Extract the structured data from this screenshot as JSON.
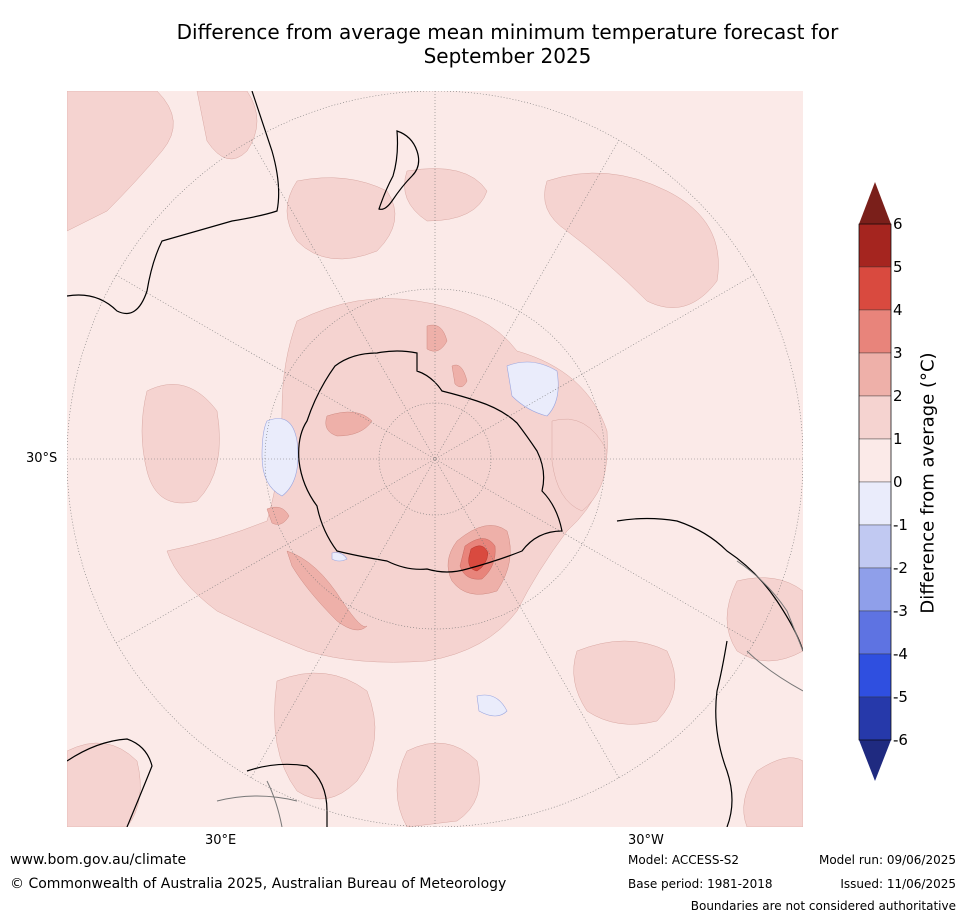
{
  "title": {
    "line1": "Difference from average mean minimum temperature forecast for",
    "line2": "September 2025"
  },
  "map": {
    "lat_label": "30°S",
    "lon_labels": {
      "east": "30°E",
      "west": "30°W"
    }
  },
  "legend": {
    "title": "Difference from average (°C)",
    "ticks": [
      "6",
      "5",
      "4",
      "3",
      "2",
      "1",
      "0",
      "-1",
      "-2",
      "-3",
      "-4",
      "-5",
      "-6"
    ],
    "colors": {
      "over": "#7a1f1a",
      "under": "#1f2a80",
      "bands": [
        "#a5251f",
        "#d94a3f",
        "#e8847b",
        "#eeb0a9",
        "#f5d3d0",
        "#fbeae8",
        "#eaecfb",
        "#c1c9f2",
        "#8f9fea",
        "#5e73e2",
        "#2f4fe0",
        "#2639aa"
      ]
    }
  },
  "footer": {
    "website": "www.bom.gov.au/climate",
    "copyright": "© Commonwealth of Australia 2025, Australian Bureau of Meteorology",
    "model": "Model: ACCESS-S2",
    "base_period": "Base period: 1981-2018",
    "model_run": "Model run: 09/06/2025",
    "issued": "Issued: 11/06/2025",
    "disclaimer": "Boundaries are not considered authoritative"
  }
}
